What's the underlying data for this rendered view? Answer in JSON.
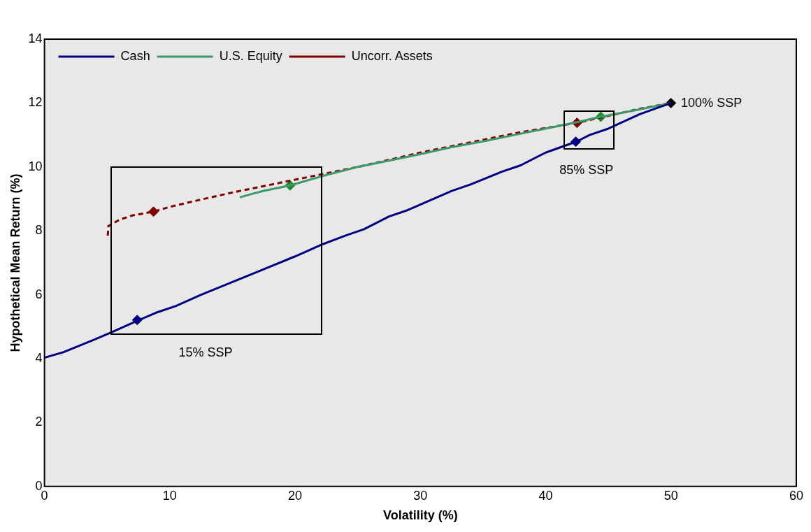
{
  "chart_data": {
    "type": "line",
    "xlabel": "Volatility (%)",
    "ylabel": "Hypothetical Mean Return (%)",
    "xlim": [
      0,
      60
    ],
    "xticks": [
      0,
      10,
      20,
      30,
      40,
      50,
      60
    ],
    "ylim": [
      0,
      14
    ],
    "yticks": [
      0,
      2,
      4,
      6,
      8,
      10,
      12,
      14
    ],
    "grid": false,
    "legend": "top left",
    "marker": "none",
    "series": [
      {
        "name": "Cash",
        "color": "#000080",
        "line_style": "solid",
        "x": [
          0,
          1.5,
          4,
          5.5,
          7.5,
          9,
          10.5,
          12.5,
          15,
          17.5,
          20,
          22,
          24,
          25.5,
          27.5,
          29,
          32.5,
          34,
          36.5,
          38,
          40,
          42.5,
          43.5,
          45,
          47.5,
          50
        ],
        "values": [
          4.03,
          4.2,
          4.6,
          4.85,
          5.2,
          5.45,
          5.65,
          6.0,
          6.4,
          6.8,
          7.2,
          7.55,
          7.85,
          8.05,
          8.45,
          8.65,
          9.25,
          9.45,
          9.85,
          10.05,
          10.45,
          10.8,
          11.0,
          11.2,
          11.65,
          12.0
        ]
      },
      {
        "name": "U.S. Equity",
        "color": "#3a9a6a",
        "line_style": "solid",
        "x": [
          15.6,
          16.5,
          17.5,
          19.6,
          22.5,
          25,
          27.5,
          30,
          32.5,
          35,
          37.5,
          40,
          42.5,
          44.4,
          47.5,
          50
        ],
        "values": [
          9.05,
          9.15,
          9.25,
          9.42,
          9.75,
          10.0,
          10.2,
          10.4,
          10.62,
          10.8,
          11.0,
          11.2,
          11.4,
          11.57,
          11.8,
          12.0
        ]
      },
      {
        "name": "Uncorr. Assets",
        "color": "#800000",
        "line_style": "dashed",
        "x": [
          5.05,
          5.1,
          6,
          7,
          8.7,
          10,
          12.5,
          15,
          17.5,
          20,
          22.5,
          25,
          27.5,
          30,
          32.5,
          35,
          37.5,
          40,
          42.5,
          45,
          47.5,
          50
        ],
        "values": [
          7.85,
          8.15,
          8.35,
          8.48,
          8.6,
          8.75,
          8.98,
          9.2,
          9.4,
          9.6,
          9.8,
          10.0,
          10.22,
          10.45,
          10.65,
          10.85,
          11.05,
          11.22,
          11.38,
          11.6,
          11.82,
          12.0
        ]
      },
      {
        "type": "scatter",
        "marker": "diamond",
        "x": [
          7.4,
          19.6,
          8.7,
          42.4,
          44.4,
          42.5,
          50
        ],
        "values": [
          5.21,
          9.42,
          8.6,
          10.79,
          11.57,
          11.38,
          12.0
        ],
        "colors": [
          "#000080",
          "#1a8a2a",
          "#800000",
          "#000080",
          "#1a8a2a",
          "#800000",
          "#000000"
        ]
      }
    ],
    "annotations": [
      "15% SSP",
      "85% SSP",
      "100% SSP"
    ]
  }
}
